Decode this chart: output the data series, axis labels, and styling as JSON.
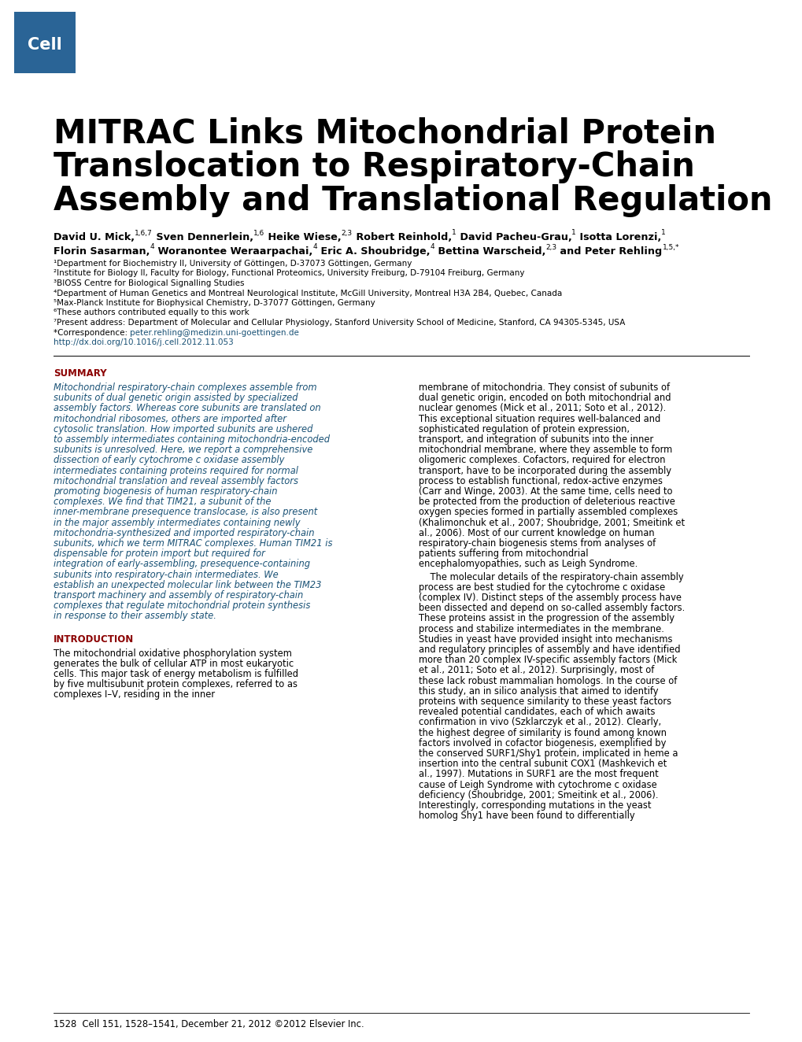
{
  "background_color": "#ffffff",
  "cell_box_color": "#2a6496",
  "cell_text": "Cell",
  "title_line1": "MITRAC Links Mitochondrial Protein",
  "title_line2": "Translocation to Respiratory-Chain",
  "title_line3": "Assembly and Translational Regulation",
  "affiliations": [
    "¹Department for Biochemistry II, University of Göttingen, D-37073 Göttingen, Germany",
    "²Institute for Biology II, Faculty for Biology, Functional Proteomics, University Freiburg, D-79104 Freiburg, Germany",
    "³BIOSS Centre for Biological Signalling Studies",
    "⁴Department of Human Genetics and Montreal Neurological Institute, McGill University, Montreal H3A 2B4, Quebec, Canada",
    "⁵Max-Planck Institute for Biophysical Chemistry, D-37077 Göttingen, Germany",
    "⁶These authors contributed equally to this work",
    "⁷Present address: Department of Molecular and Cellular Physiology, Stanford University School of Medicine, Stanford, CA 94305-5345, USA",
    "*Correspondence: peter.rehling@medizin.uni-goettingen.de",
    "http://dx.doi.org/10.1016/j.cell.2012.11.053"
  ],
  "summary_heading": "SUMMARY",
  "summary_text_left": "Mitochondrial respiratory-chain complexes assemble from subunits of dual genetic origin assisted by specialized assembly factors. Whereas core subunits are translated on mitochondrial ribosomes, others are imported after cytosolic translation. How imported subunits are ushered to assembly intermediates containing mitochondria-encoded subunits is unresolved. Here, we report a comprehensive dissection of early cytochrome c oxidase assembly intermediates containing proteins required for normal mitochondrial translation and reveal assembly factors promoting biogenesis of human respiratory-chain complexes. We find that TIM21, a subunit of the inner-membrane presequence translocase, is also present in the major assembly intermediates containing newly mitochondria-synthesized and imported respiratory-chain subunits, which we term MITRAC complexes. Human TIM21 is dispensable for protein import but required for integration of early-assembling, presequence-containing subunits into respiratory-chain intermediates. We establish an unexpected molecular link between the TIM23 transport machinery and assembly of respiratory-chain complexes that regulate mitochondrial protein synthesis in response to their assembly state.",
  "introduction_heading": "INTRODUCTION",
  "intro_text": "The mitochondrial oxidative phosphorylation system generates the bulk of cellular ATP in most eukaryotic cells. This major task of energy metabolism is fulfilled by five multisubunit protein complexes, referred to as complexes I–V, residing in the inner",
  "right_col_para1": "membrane of mitochondria. They consist of subunits of dual genetic origin, encoded on both mitochondrial and nuclear genomes (Mick et al., 2011; Soto et al., 2012). This exceptional situation requires well-balanced and sophisticated regulation of protein expression, transport, and integration of subunits into the inner mitochondrial membrane, where they assemble to form oligomeric complexes. Cofactors, required for electron transport, have to be incorporated during the assembly process to establish functional, redox-active enzymes (Carr and Winge, 2003). At the same time, cells need to be protected from the production of deleterious reactive oxygen species formed in partially assembled complexes (Khalimonchuk et al., 2007; Shoubridge, 2001; Smeitink et al., 2006). Most of our current knowledge on human respiratory-chain biogenesis stems from analyses of patients suffering from mitochondrial encephalomyopathies, such as Leigh Syndrome.",
  "right_col_para2": "The molecular details of the respiratory-chain assembly process are best studied for the cytochrome c oxidase (complex IV). Distinct steps of the assembly process have been dissected and depend on so-called assembly factors. These proteins assist in the progression of the assembly process and stabilize intermediates in the membrane. Studies in yeast have provided insight into mechanisms and regulatory principles of assembly and have identified more than 20 complex IV-specific assembly factors (Mick et al., 2011; Soto et al., 2012). Surprisingly, most of these lack robust mammalian homologs. In the course of this study, an in silico analysis that aimed to identify proteins with sequence similarity to these yeast factors revealed potential candidates, each of which awaits confirmation in vivo (Szklarczyk et al., 2012). Clearly, the highest degree of similarity is found among known factors involved in cofactor biogenesis, exemplified by the conserved SURF1/Shy1 protein, implicated in heme a insertion into the central subunit COX1 (Mashkevich et al., 1997). Mutations in SURF1 are the most frequent cause of Leigh Syndrome with cytochrome c oxidase deficiency (Shoubridge, 2001; Smeitink et al., 2006). Interestingly, corresponding mutations in the yeast homolog Shy1 have been found to differentially",
  "footer_text": "1528  Cell 151, 1528–1541, December 21, 2012 ©2012 Elsevier Inc.",
  "dark_red": "#8B0000",
  "blue_link": "#1a5276",
  "summary_text_color": "#1a5276",
  "black": "#000000",
  "white": "#ffffff"
}
